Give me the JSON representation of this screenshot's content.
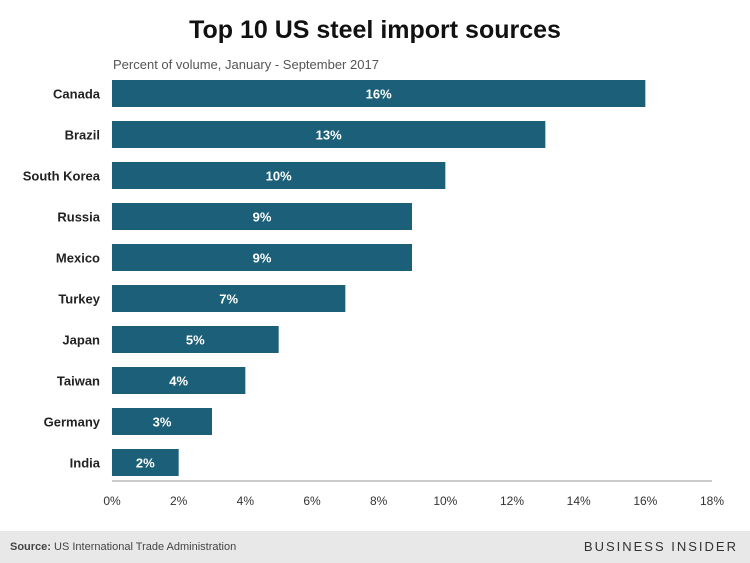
{
  "chart_data": {
    "type": "bar",
    "orientation": "horizontal",
    "title": "Top 10 US steel import sources",
    "subtitle": "Percent of volume, January - September 2017",
    "categories": [
      "Canada",
      "Brazil",
      "South Korea",
      "Russia",
      "Mexico",
      "Turkey",
      "Japan",
      "Taiwan",
      "Germany",
      "India"
    ],
    "values": [
      16,
      13,
      10,
      9,
      9,
      7,
      5,
      4,
      3,
      2
    ],
    "data_labels": [
      "16%",
      "13%",
      "10%",
      "9%",
      "9%",
      "7%",
      "5%",
      "4%",
      "3%",
      "2%"
    ],
    "xlim": [
      0,
      18
    ],
    "xticks": [
      0,
      2,
      4,
      6,
      8,
      10,
      12,
      14,
      16,
      18
    ],
    "xtick_labels": [
      "0%",
      "2%",
      "4%",
      "6%",
      "8%",
      "10%",
      "12%",
      "14%",
      "16%",
      "18%"
    ],
    "grid": false,
    "legend": "none"
  },
  "colors": {
    "bar": "#1b5f78",
    "bar_label": "#ffffff",
    "axis": "#999999",
    "text": "#222222",
    "footer_bg": "#e8e8e8"
  },
  "footer": {
    "source_label": "Source:",
    "source_text": "US International Trade Administration",
    "brand": "BUSINESS INSIDER"
  }
}
